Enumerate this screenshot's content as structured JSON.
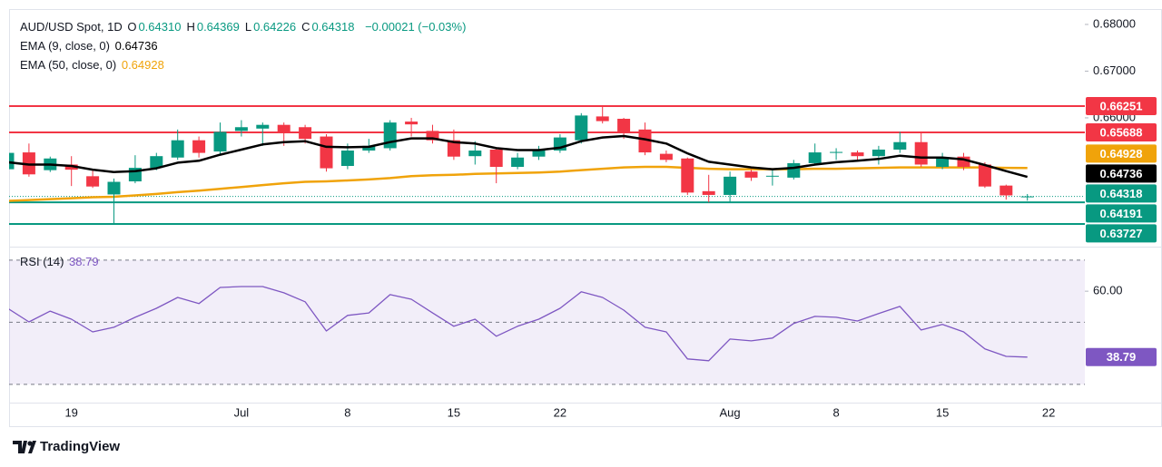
{
  "header": {
    "symbol": "AUD/USD Spot, 1D",
    "ohlc": [
      {
        "key": "O",
        "value": "0.64310"
      },
      {
        "key": "H",
        "value": "0.64369"
      },
      {
        "key": "L",
        "value": "0.64226"
      },
      {
        "key": "C",
        "value": "0.64318"
      }
    ],
    "change": "−0.00021 (−0.03%)"
  },
  "footer": {
    "brand": "TradingView"
  },
  "chart_data": [
    {
      "type": "candlestick",
      "categories": [
        null,
        null,
        null,
        "19",
        null,
        null,
        null,
        null,
        null,
        null,
        null,
        "Jul",
        null,
        null,
        null,
        null,
        "8",
        null,
        null,
        null,
        null,
        "15",
        null,
        null,
        null,
        null,
        "22",
        null,
        null,
        null,
        null,
        null,
        null,
        null,
        "Aug",
        null,
        null,
        null,
        null,
        "8",
        null,
        null,
        null,
        null,
        "15",
        null,
        null,
        null,
        null,
        "22"
      ],
      "open": [
        0.649,
        0.6526,
        0.6488,
        0.65,
        0.6475,
        0.6436,
        0.6464,
        0.6493,
        0.6515,
        0.6552,
        0.6528,
        0.6572,
        0.6577,
        0.6585,
        0.658,
        0.656,
        0.6497,
        0.653,
        0.6535,
        0.6592,
        0.6572,
        0.6552,
        0.6518,
        0.6532,
        0.6495,
        0.6517,
        0.653,
        0.6552,
        0.6603,
        0.6598,
        0.6575,
        0.6523,
        0.6513,
        0.6443,
        0.6435,
        0.6485,
        0.6475,
        0.6472,
        0.6503,
        0.6525,
        0.6526,
        0.6518,
        0.6532,
        0.6548,
        0.6495,
        0.6517,
        0.65,
        0.6455,
        0.6431,
        null
      ],
      "high": [
        0.653,
        0.6545,
        0.6517,
        0.6518,
        0.649,
        0.647,
        0.652,
        0.6525,
        0.6575,
        0.656,
        0.659,
        0.6595,
        0.659,
        0.659,
        0.6585,
        0.6565,
        0.6545,
        0.6555,
        0.6595,
        0.66,
        0.6585,
        0.6575,
        0.655,
        0.6535,
        0.6525,
        0.654,
        0.6565,
        0.661,
        0.6625,
        0.66,
        0.659,
        0.653,
        0.6515,
        0.6478,
        0.6485,
        0.649,
        0.649,
        0.651,
        0.6545,
        0.6535,
        0.653,
        0.654,
        0.657,
        0.657,
        0.6525,
        0.6525,
        0.6505,
        0.6457,
        0.64369,
        null
      ],
      "low": [
        0.6485,
        0.6474,
        0.6484,
        0.6454,
        0.645,
        0.6373,
        0.646,
        0.6488,
        0.651,
        0.6515,
        0.652,
        0.656,
        0.654,
        0.654,
        0.6545,
        0.6485,
        0.649,
        0.6525,
        0.653,
        0.656,
        0.6545,
        0.651,
        0.65,
        0.646,
        0.649,
        0.651,
        0.6525,
        0.6545,
        0.6588,
        0.6555,
        0.652,
        0.6505,
        0.6435,
        0.6419,
        0.642,
        0.6465,
        0.6455,
        0.6468,
        0.6498,
        0.651,
        0.651,
        0.65,
        0.6525,
        0.6495,
        0.649,
        0.6488,
        0.645,
        0.6425,
        0.64226,
        null
      ],
      "close": [
        0.6525,
        0.6479,
        0.6513,
        0.6489,
        0.6453,
        0.6463,
        0.6493,
        0.6518,
        0.6552,
        0.6525,
        0.657,
        0.658,
        0.6585,
        0.657,
        0.6555,
        0.6492,
        0.653,
        0.654,
        0.659,
        0.6586,
        0.6552,
        0.6517,
        0.653,
        0.6495,
        0.6515,
        0.6532,
        0.6558,
        0.6605,
        0.6593,
        0.657,
        0.6526,
        0.651,
        0.644,
        0.6435,
        0.6474,
        0.6472,
        0.6476,
        0.6503,
        0.6526,
        0.6527,
        0.6518,
        0.6532,
        0.6548,
        0.65,
        0.6515,
        0.6495,
        0.6453,
        0.6434,
        0.64318,
        null
      ],
      "up_color": "#089981",
      "down_color": "#f23645",
      "series": [
        {
          "name": "EMA (9, close, 0)",
          "color": "#000000",
          "values": [
            0.6505,
            0.65,
            0.65,
            0.6497,
            0.6489,
            0.6484,
            0.6486,
            0.6492,
            0.6504,
            0.6508,
            0.6521,
            0.6532,
            0.6543,
            0.6548,
            0.655,
            0.6538,
            0.6537,
            0.6538,
            0.6548,
            0.6556,
            0.6556,
            0.6548,
            0.6545,
            0.6535,
            0.6531,
            0.6531,
            0.6536,
            0.655,
            0.6558,
            0.6561,
            0.6554,
            0.6545,
            0.6524,
            0.6506,
            0.65,
            0.6494,
            0.649,
            0.6493,
            0.65,
            0.6505,
            0.6508,
            0.6512,
            0.6519,
            0.6515,
            0.6515,
            0.6511,
            0.6499,
            0.6486,
            0.64736,
            null
          ]
        },
        {
          "name": "EMA (50, close, 0)",
          "color": "#f0a30a",
          "values": [
            0.6422,
            0.6424,
            0.6426,
            0.6428,
            0.643,
            0.6431,
            0.6434,
            0.6437,
            0.6441,
            0.6444,
            0.6448,
            0.6452,
            0.6456,
            0.646,
            0.6463,
            0.6464,
            0.6466,
            0.6468,
            0.6471,
            0.6475,
            0.6477,
            0.6478,
            0.648,
            0.6481,
            0.6482,
            0.6483,
            0.6485,
            0.6488,
            0.6491,
            0.6494,
            0.6495,
            0.6495,
            0.6493,
            0.6491,
            0.649,
            0.649,
            0.649,
            0.649,
            0.6491,
            0.6491,
            0.6492,
            0.6493,
            0.6494,
            0.6494,
            0.6494,
            0.6494,
            0.6494,
            0.6493,
            0.64928,
            null
          ]
        }
      ],
      "levels": [
        {
          "value": 0.66251,
          "color": "#f23645"
        },
        {
          "value": 0.65688,
          "color": "#f23645"
        },
        {
          "value": 0.64191,
          "color": "#089981"
        },
        {
          "value": 0.63727,
          "color": "#089981"
        }
      ],
      "ylim": [
        0.6332,
        0.6829
      ],
      "yticks": [
        {
          "value": 0.68,
          "label": "0.68000"
        },
        {
          "value": 0.67,
          "label": "0.67000"
        },
        {
          "value": 0.66,
          "label": "0.66000"
        }
      ],
      "grid": false
    },
    {
      "type": "line",
      "series": [
        {
          "name": "RSI (14)",
          "color": "#7e57c2",
          "values": [
            54.5,
            50.1,
            53.6,
            51.0,
            46.9,
            48.4,
            51.6,
            54.5,
            58.0,
            56.0,
            61.2,
            61.5,
            61.5,
            59.5,
            56.6,
            47.2,
            52.2,
            53.0,
            58.9,
            57.4,
            53.0,
            48.7,
            51.0,
            45.5,
            48.7,
            51.0,
            54.5,
            59.8,
            58.0,
            53.9,
            48.4,
            46.9,
            38.2,
            37.6,
            44.6,
            44.0,
            44.9,
            49.6,
            51.9,
            51.6,
            50.4,
            52.8,
            55.1,
            47.5,
            49.3,
            46.9,
            41.4,
            39.0,
            38.79,
            null
          ]
        }
      ],
      "levels": [
        70,
        50,
        30
      ],
      "band_color": "#7e57c2",
      "ylim": [
        24.7,
        72.6
      ],
      "yticks": [
        {
          "value": 60,
          "label": "60.00"
        }
      ],
      "grid": false
    }
  ]
}
